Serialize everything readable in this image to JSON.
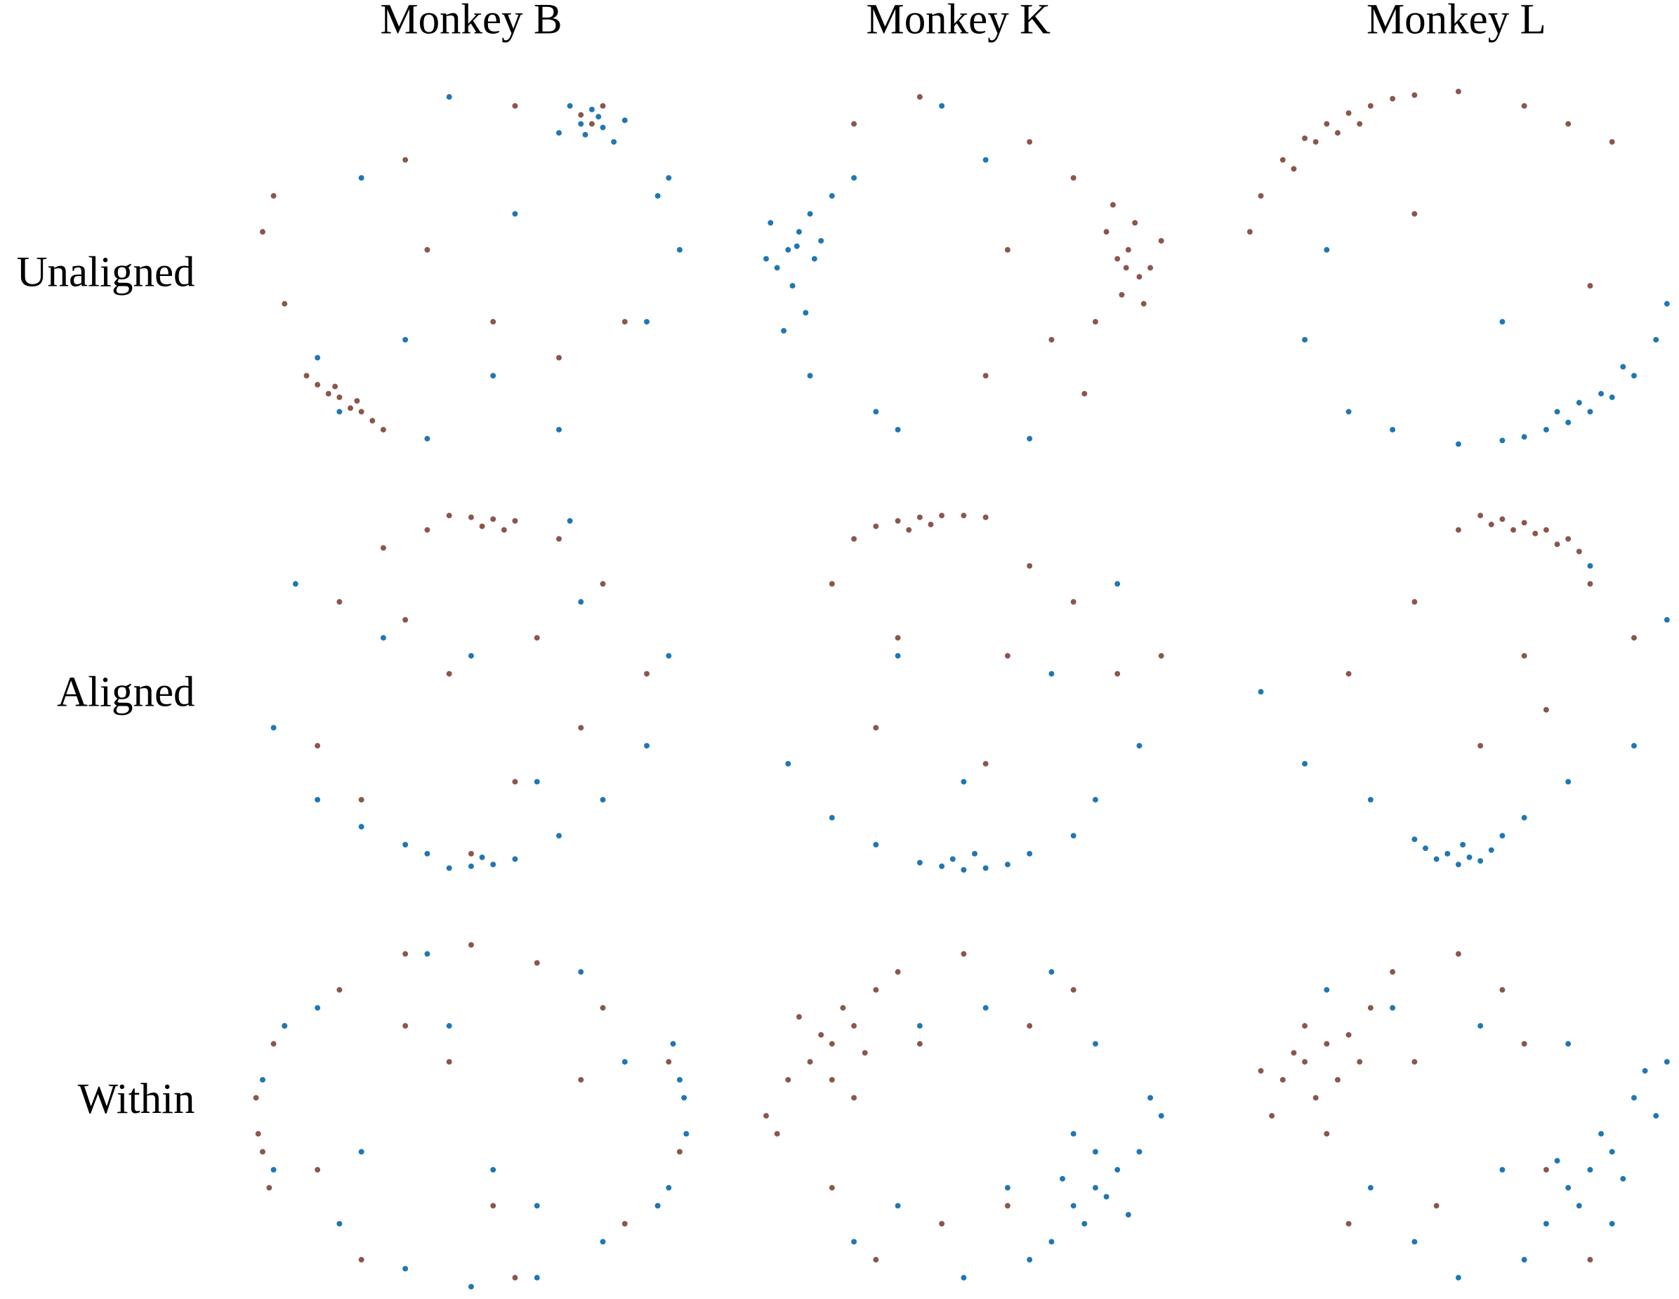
{
  "column_titles": [
    "Monkey B",
    "Monkey K",
    "Monkey L"
  ],
  "row_labels": [
    "Unaligned",
    "Aligned",
    "Within"
  ],
  "chart_data": [
    {
      "type": "scatter",
      "xlim": [
        -1,
        1
      ],
      "ylim": [
        -1,
        1
      ],
      "series": [
        {
          "color": "#8c564b",
          "x": [
            -0.75,
            -0.65,
            -0.55,
            -0.45,
            -0.6,
            -0.5,
            -0.7,
            -0.4,
            -0.95,
            -0.9,
            -0.3,
            0.2,
            0.55,
            0.6,
            0.5,
            0.1,
            0.4,
            -0.2,
            0.7,
            -0.85,
            -0.62,
            -0.52
          ],
          "y": [
            -0.6,
            -0.7,
            -0.78,
            -0.85,
            -0.72,
            -0.8,
            -0.65,
            -0.9,
            0.2,
            0.4,
            0.6,
            0.9,
            0.8,
            0.9,
            0.85,
            -0.3,
            -0.5,
            0.1,
            -0.3,
            -0.2,
            -0.66,
            -0.74
          ]
        },
        {
          "color": "#1f77b4",
          "x": [
            0.5,
            0.6,
            0.55,
            0.45,
            0.65,
            0.7,
            0.4,
            0.85,
            0.95,
            0.8,
            -0.7,
            -0.6,
            -0.2,
            0.1,
            -0.1,
            0.2,
            -0.5,
            0.4,
            -0.3,
            0.9,
            0.58,
            0.52
          ],
          "y": [
            0.8,
            0.78,
            0.88,
            0.9,
            0.7,
            0.82,
            0.75,
            0.4,
            0.1,
            -0.3,
            -0.5,
            -0.8,
            -0.95,
            -0.6,
            0.95,
            0.3,
            0.5,
            -0.9,
            -0.4,
            0.5,
            0.84,
            0.74
          ]
        }
      ]
    },
    {
      "type": "scatter",
      "xlim": [
        -1,
        1
      ],
      "ylim": [
        -1,
        1
      ],
      "series": [
        {
          "color": "#8c564b",
          "x": [
            0.7,
            0.75,
            0.8,
            0.65,
            0.85,
            0.72,
            0.78,
            0.6,
            0.9,
            0.68,
            0.5,
            0.3,
            -0.2,
            0.1,
            0.4,
            -0.5,
            0.2,
            0.55,
            0.82,
            0.74
          ],
          "y": [
            0.05,
            0.1,
            -0.05,
            0.2,
            0.0,
            -0.15,
            0.25,
            -0.3,
            0.15,
            0.35,
            0.5,
            0.7,
            0.95,
            -0.6,
            -0.4,
            0.8,
            0.1,
            -0.7,
            -0.2,
            0.0
          ]
        },
        {
          "color": "#1f77b4",
          "x": [
            -0.8,
            -0.75,
            -0.85,
            -0.7,
            -0.9,
            -0.78,
            -0.65,
            -0.72,
            -0.88,
            -0.6,
            -0.82,
            -0.5,
            -0.4,
            -0.7,
            -0.3,
            0.1,
            0.3,
            -0.1,
            -0.76,
            -0.68
          ],
          "y": [
            0.1,
            0.2,
            0.0,
            0.3,
            0.05,
            -0.1,
            0.15,
            -0.25,
            0.25,
            0.4,
            -0.35,
            0.5,
            -0.8,
            -0.6,
            -0.9,
            0.6,
            -0.95,
            0.9,
            0.12,
            0.05
          ]
        }
      ]
    },
    {
      "type": "scatter",
      "xlim": [
        -1,
        1
      ],
      "ylim": [
        -1,
        1
      ],
      "series": [
        {
          "color": "#8c564b",
          "x": [
            -0.8,
            -0.7,
            -0.6,
            -0.5,
            -0.4,
            -0.3,
            -0.2,
            -0.9,
            -0.95,
            -0.65,
            -0.45,
            -0.55,
            0.0,
            0.3,
            0.5,
            0.7,
            -0.2,
            0.6,
            -0.75
          ],
          "y": [
            0.6,
            0.72,
            0.8,
            0.86,
            0.9,
            0.94,
            0.96,
            0.4,
            0.2,
            0.7,
            0.8,
            0.75,
            0.98,
            0.9,
            0.8,
            0.7,
            0.3,
            -0.1,
            0.55
          ]
        },
        {
          "color": "#1f77b4",
          "x": [
            0.8,
            0.7,
            0.6,
            0.5,
            0.4,
            0.3,
            0.2,
            0.9,
            0.95,
            0.65,
            0.45,
            0.55,
            0.0,
            -0.3,
            -0.5,
            -0.7,
            0.2,
            -0.6,
            0.75
          ],
          "y": [
            -0.6,
            -0.72,
            -0.8,
            -0.86,
            -0.9,
            -0.94,
            -0.96,
            -0.4,
            -0.2,
            -0.7,
            -0.8,
            -0.75,
            -0.98,
            -0.9,
            -0.8,
            -0.4,
            -0.3,
            0.1,
            -0.55
          ]
        }
      ]
    },
    {
      "type": "scatter",
      "xlim": [
        -1,
        1
      ],
      "ylim": [
        -1,
        1
      ],
      "series": [
        {
          "color": "#8c564b",
          "x": [
            -0.1,
            0.0,
            0.1,
            0.2,
            -0.2,
            0.05,
            0.15,
            -0.4,
            0.4,
            -0.6,
            0.6,
            -0.3,
            0.3,
            -0.1,
            0.5,
            -0.7,
            0.2,
            -0.5,
            0.8,
            0.0
          ],
          "y": [
            0.98,
            0.97,
            0.96,
            0.95,
            0.9,
            0.92,
            0.9,
            0.8,
            0.85,
            0.5,
            0.6,
            0.4,
            0.3,
            0.1,
            -0.2,
            -0.3,
            -0.5,
            -0.6,
            0.1,
            -0.9
          ]
        },
        {
          "color": "#1f77b4",
          "x": [
            -0.1,
            0.0,
            0.1,
            0.2,
            -0.2,
            0.05,
            -0.3,
            -0.5,
            0.4,
            -0.7,
            0.6,
            -0.9,
            0.8,
            0.3,
            -0.4,
            0.5,
            0.9,
            -0.8,
            0.45,
            0.0
          ],
          "y": [
            -0.98,
            -0.97,
            -0.96,
            -0.93,
            -0.9,
            -0.92,
            -0.85,
            -0.75,
            -0.8,
            -0.6,
            -0.6,
            -0.2,
            -0.3,
            -0.5,
            0.3,
            0.5,
            0.2,
            0.6,
            0.95,
            0.2
          ]
        }
      ]
    },
    {
      "type": "scatter",
      "xlim": [
        -1,
        1
      ],
      "ylim": [
        -1,
        1
      ],
      "series": [
        {
          "color": "#8c564b",
          "x": [
            -0.4,
            -0.3,
            -0.2,
            -0.1,
            0.0,
            0.1,
            -0.5,
            -0.25,
            -0.15,
            0.3,
            -0.6,
            0.5,
            -0.3,
            0.2,
            0.7,
            -0.4,
            0.9,
            0.1
          ],
          "y": [
            0.92,
            0.95,
            0.97,
            0.98,
            0.98,
            0.97,
            0.85,
            0.9,
            0.93,
            0.7,
            0.6,
            0.5,
            0.3,
            0.2,
            0.1,
            -0.2,
            0.2,
            -0.4
          ]
        },
        {
          "color": "#1f77b4",
          "x": [
            0.0,
            0.1,
            -0.1,
            0.2,
            -0.2,
            0.05,
            -0.05,
            0.3,
            -0.4,
            0.5,
            -0.6,
            0.6,
            -0.8,
            0.8,
            0.4,
            -0.3,
            0.0,
            0.7
          ],
          "y": [
            -0.99,
            -0.98,
            -0.97,
            -0.96,
            -0.95,
            -0.9,
            -0.93,
            -0.9,
            -0.85,
            -0.8,
            -0.7,
            -0.6,
            -0.4,
            -0.3,
            0.1,
            0.2,
            -0.5,
            0.6
          ]
        }
      ]
    },
    {
      "type": "scatter",
      "xlim": [
        -1,
        1
      ],
      "ylim": [
        -1,
        1
      ],
      "series": [
        {
          "color": "#8c564b",
          "x": [
            0.1,
            0.2,
            0.3,
            0.4,
            0.5,
            0.25,
            0.35,
            0.15,
            0.45,
            0.55,
            0.0,
            0.6,
            -0.2,
            0.3,
            -0.5,
            0.8,
            0.1,
            0.4
          ],
          "y": [
            0.98,
            0.96,
            0.94,
            0.9,
            0.85,
            0.9,
            0.88,
            0.93,
            0.82,
            0.78,
            0.9,
            0.6,
            0.5,
            0.2,
            0.1,
            0.3,
            -0.3,
            -0.1
          ]
        },
        {
          "color": "#1f77b4",
          "x": [
            0.0,
            0.05,
            -0.05,
            0.1,
            -0.1,
            0.02,
            0.15,
            -0.15,
            0.2,
            -0.2,
            0.3,
            -0.4,
            0.5,
            -0.7,
            0.8,
            0.95,
            -0.9,
            0.6
          ],
          "y": [
            -0.96,
            -0.92,
            -0.9,
            -0.94,
            -0.93,
            -0.85,
            -0.88,
            -0.87,
            -0.8,
            -0.82,
            -0.7,
            -0.6,
            -0.5,
            -0.4,
            -0.3,
            0.4,
            0.0,
            0.7
          ]
        }
      ]
    },
    {
      "type": "scatter",
      "xlim": [
        -1,
        1
      ],
      "ylim": [
        -1,
        1
      ],
      "series": [
        {
          "color": "#8c564b",
          "x": [
            -0.98,
            -0.95,
            -0.9,
            -0.97,
            -0.85,
            -0.92,
            0.9,
            0.95,
            0.85,
            -0.6,
            -0.3,
            0.0,
            0.3,
            0.6,
            -0.5,
            0.2,
            -0.1,
            0.5,
            0.7,
            -0.7,
            0.1,
            -0.3
          ],
          "y": [
            0.1,
            -0.2,
            0.4,
            -0.1,
            0.5,
            -0.4,
            0.3,
            -0.2,
            -0.5,
            0.7,
            0.9,
            0.95,
            0.85,
            0.6,
            -0.8,
            -0.9,
            0.3,
            0.2,
            -0.6,
            -0.3,
            -0.5,
            0.5
          ]
        },
        {
          "color": "#1f77b4",
          "x": [
            0.98,
            0.95,
            0.9,
            0.97,
            0.85,
            0.92,
            -0.9,
            -0.95,
            -0.85,
            0.6,
            0.3,
            0.0,
            -0.3,
            -0.6,
            0.5,
            -0.2,
            0.1,
            -0.5,
            -0.7,
            0.7,
            -0.1,
            0.3
          ],
          "y": [
            -0.1,
            0.2,
            -0.4,
            0.1,
            -0.5,
            0.4,
            -0.3,
            0.2,
            0.5,
            -0.7,
            -0.9,
            -0.95,
            -0.85,
            -0.6,
            0.8,
            0.9,
            -0.3,
            -0.2,
            0.6,
            0.3,
            0.5,
            -0.5
          ]
        }
      ]
    },
    {
      "type": "scatter",
      "xlim": [
        -1,
        1
      ],
      "ylim": [
        -1,
        1
      ],
      "series": [
        {
          "color": "#8c564b",
          "x": [
            -0.6,
            -0.5,
            -0.7,
            -0.55,
            -0.65,
            -0.8,
            -0.45,
            -0.75,
            -0.6,
            -0.9,
            -0.4,
            -0.5,
            -0.85,
            -0.3,
            -0.2,
            0.0,
            0.2,
            -0.1,
            0.3,
            -0.6,
            0.5,
            -0.4
          ],
          "y": [
            0.4,
            0.5,
            0.3,
            0.6,
            0.45,
            0.2,
            0.35,
            0.55,
            0.2,
            0.0,
            0.7,
            0.1,
            -0.1,
            0.8,
            0.4,
            0.9,
            -0.5,
            -0.6,
            0.5,
            -0.4,
            0.7,
            -0.8
          ]
        },
        {
          "color": "#1f77b4",
          "x": [
            0.6,
            0.5,
            0.7,
            0.55,
            0.65,
            0.8,
            0.45,
            0.75,
            0.6,
            0.9,
            0.4,
            0.5,
            0.85,
            0.3,
            0.2,
            0.0,
            -0.2,
            0.1,
            -0.3,
            0.6,
            -0.5,
            0.4
          ],
          "y": [
            -0.4,
            -0.5,
            -0.3,
            -0.6,
            -0.45,
            -0.2,
            -0.35,
            -0.55,
            -0.2,
            0.0,
            -0.7,
            -0.1,
            0.1,
            -0.8,
            -0.4,
            -0.9,
            0.5,
            0.6,
            -0.5,
            0.4,
            -0.7,
            0.8
          ]
        }
      ]
    },
    {
      "type": "scatter",
      "xlim": [
        -1,
        1
      ],
      "ylim": [
        -1,
        1
      ],
      "series": [
        {
          "color": "#8c564b",
          "x": [
            -0.7,
            -0.6,
            -0.8,
            -0.65,
            -0.75,
            -0.9,
            -0.55,
            -0.7,
            -0.5,
            -0.85,
            -0.4,
            -0.6,
            -0.3,
            -0.2,
            0.0,
            0.2,
            -0.1,
            0.3,
            -0.5,
            0.4,
            -0.45,
            0.6
          ],
          "y": [
            0.3,
            0.4,
            0.2,
            0.1,
            0.35,
            0.25,
            0.2,
            0.5,
            0.45,
            0.0,
            0.6,
            -0.1,
            0.8,
            0.3,
            0.9,
            0.7,
            -0.5,
            0.4,
            -0.6,
            -0.3,
            0.3,
            -0.8
          ]
        },
        {
          "color": "#1f77b4",
          "x": [
            0.6,
            0.7,
            0.5,
            0.65,
            0.75,
            0.9,
            0.55,
            0.8,
            0.45,
            0.85,
            0.4,
            0.7,
            0.3,
            0.2,
            0.0,
            -0.2,
            0.1,
            -0.3,
            0.5,
            -0.4,
            0.95,
            -0.6
          ],
          "y": [
            -0.3,
            -0.2,
            -0.4,
            -0.1,
            -0.35,
            0.0,
            -0.5,
            0.1,
            -0.25,
            0.25,
            -0.6,
            -0.6,
            -0.8,
            -0.3,
            -0.9,
            -0.7,
            0.5,
            0.6,
            0.4,
            -0.4,
            0.3,
            0.7
          ]
        }
      ]
    }
  ]
}
